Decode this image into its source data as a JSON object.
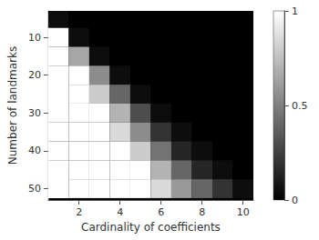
{
  "chart_data": {
    "type": "heatmap",
    "xlabel": "Cardinality of coefficients",
    "ylabel": "Number of landmarks",
    "x": [
      1,
      2,
      3,
      4,
      5,
      6,
      7,
      8,
      9,
      10
    ],
    "y": [
      5,
      10,
      15,
      20,
      25,
      30,
      35,
      40,
      45,
      50
    ],
    "values": [
      [
        0.05,
        0.0,
        0.0,
        0.0,
        0.0,
        0.0,
        0.0,
        0.0,
        0.0,
        0.0
      ],
      [
        1.0,
        0.05,
        0.0,
        0.0,
        0.0,
        0.0,
        0.0,
        0.0,
        0.0,
        0.0
      ],
      [
        1.0,
        0.65,
        0.05,
        0.0,
        0.0,
        0.0,
        0.0,
        0.0,
        0.0,
        0.0
      ],
      [
        1.0,
        1.0,
        0.55,
        0.05,
        0.0,
        0.0,
        0.0,
        0.0,
        0.0,
        0.0
      ],
      [
        1.0,
        1.0,
        0.8,
        0.4,
        0.05,
        0.0,
        0.0,
        0.0,
        0.0,
        0.0
      ],
      [
        1.0,
        1.0,
        1.0,
        0.7,
        0.3,
        0.05,
        0.0,
        0.0,
        0.0,
        0.0
      ],
      [
        1.0,
        1.0,
        1.0,
        0.85,
        0.55,
        0.2,
        0.05,
        0.0,
        0.0,
        0.0
      ],
      [
        1.0,
        1.0,
        1.0,
        1.0,
        0.8,
        0.45,
        0.15,
        0.05,
        0.0,
        0.0
      ],
      [
        1.0,
        1.0,
        1.0,
        1.0,
        1.0,
        0.7,
        0.4,
        0.15,
        0.05,
        0.0
      ],
      [
        1.0,
        1.0,
        1.0,
        1.0,
        1.0,
        0.85,
        0.6,
        0.4,
        0.2,
        0.05
      ]
    ],
    "xlim": [
      0.5,
      10.5
    ],
    "ylim": [
      53,
      3
    ],
    "xticks": [
      2,
      4,
      6,
      8,
      10
    ],
    "yticks": [
      10,
      20,
      30,
      40,
      50
    ],
    "color": [
      "#000000",
      "#ffffff"
    ],
    "colorbar_range": [
      0,
      1
    ],
    "colorbar_ticks": [
      0,
      0.5,
      1
    ],
    "grid": false
  }
}
